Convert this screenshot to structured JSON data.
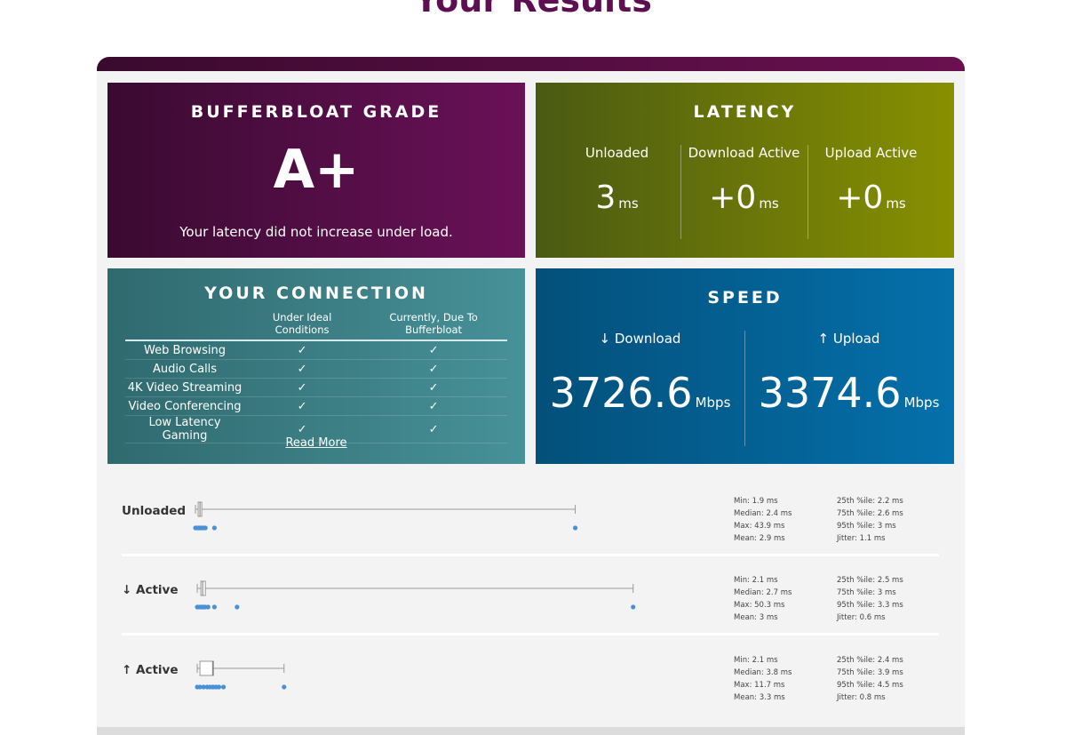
{
  "page_title": "Your Results",
  "grade": {
    "title": "BUFFERBLOAT GRADE",
    "value": "A+",
    "description": "Your latency did not increase under load."
  },
  "latency": {
    "title": "LATENCY",
    "columns": [
      {
        "label": "Unloaded",
        "value": "3",
        "unit": "ms"
      },
      {
        "label": "Download Active",
        "value": "+0",
        "unit": "ms"
      },
      {
        "label": "Upload Active",
        "value": "+0",
        "unit": "ms"
      }
    ]
  },
  "connection": {
    "title": "YOUR CONNECTION",
    "headers": [
      "",
      "Under Ideal Conditions",
      "Currently, Due To Bufferbloat"
    ],
    "rows": [
      {
        "label": "Web Browsing",
        "ideal": "✓",
        "current": "✓"
      },
      {
        "label": "Audio Calls",
        "ideal": "✓",
        "current": "✓"
      },
      {
        "label": "4K Video Streaming",
        "ideal": "✓",
        "current": "✓"
      },
      {
        "label": "Video Conferencing",
        "ideal": "✓",
        "current": "✓"
      },
      {
        "label": "Low Latency Gaming",
        "ideal": "✓",
        "current": "✓"
      }
    ],
    "read_more": "Read More"
  },
  "speed": {
    "title": "SPEED",
    "download": {
      "label": "↓ Download",
      "value": "3726.6",
      "unit": "Mbps"
    },
    "upload": {
      "label": "↑ Upload",
      "value": "3374.6",
      "unit": "Mbps"
    }
  },
  "colors": {
    "title": "#5e0f52",
    "plot_point": "#4a90d9",
    "whisker": "#999999"
  },
  "latency_rows": [
    {
      "label": "Unloaded",
      "stats": [
        "Min: 1.9 ms",
        "Median: 2.4 ms",
        "Max: 43.9 ms",
        "Mean: 2.9 ms",
        "25th %ile: 2.2 ms",
        "75th %ile: 2.6 ms",
        "95th %ile: 3 ms",
        "Jitter: 1.1 ms"
      ],
      "box": {
        "min": 1.9,
        "q1": 2.2,
        "median": 2.4,
        "q3": 2.6,
        "max": 43.9
      },
      "points": [
        1.9,
        2.1,
        2.2,
        2.3,
        2.4,
        2.5,
        2.6,
        2.8,
        3.0,
        4.0,
        43.9
      ]
    },
    {
      "label": "↓ Active",
      "stats": [
        "Min: 2.1 ms",
        "Median: 2.7 ms",
        "Max: 50.3 ms",
        "Mean: 3 ms",
        "25th %ile: 2.5 ms",
        "75th %ile: 3 ms",
        "95th %ile: 3.3 ms",
        "Jitter: 0.6 ms"
      ],
      "box": {
        "min": 2.1,
        "q1": 2.5,
        "median": 2.7,
        "q3": 3.0,
        "max": 50.3
      },
      "points": [
        2.1,
        2.3,
        2.5,
        2.6,
        2.7,
        2.8,
        3.0,
        3.3,
        4.0,
        6.5,
        50.3
      ]
    },
    {
      "label": "↑ Active",
      "stats": [
        "Min: 2.1 ms",
        "Median: 3.8 ms",
        "Max: 11.7 ms",
        "Mean: 3.3 ms",
        "25th %ile: 2.4 ms",
        "75th %ile: 3.9 ms",
        "95th %ile: 4.5 ms",
        "Jitter: 0.8 ms"
      ],
      "box": {
        "min": 2.1,
        "q1": 2.4,
        "median": 3.8,
        "q3": 3.9,
        "max": 11.7
      },
      "points": [
        2.1,
        2.4,
        2.8,
        3.2,
        3.5,
        3.8,
        3.9,
        4.2,
        4.5,
        5.0,
        11.7
      ]
    }
  ]
}
